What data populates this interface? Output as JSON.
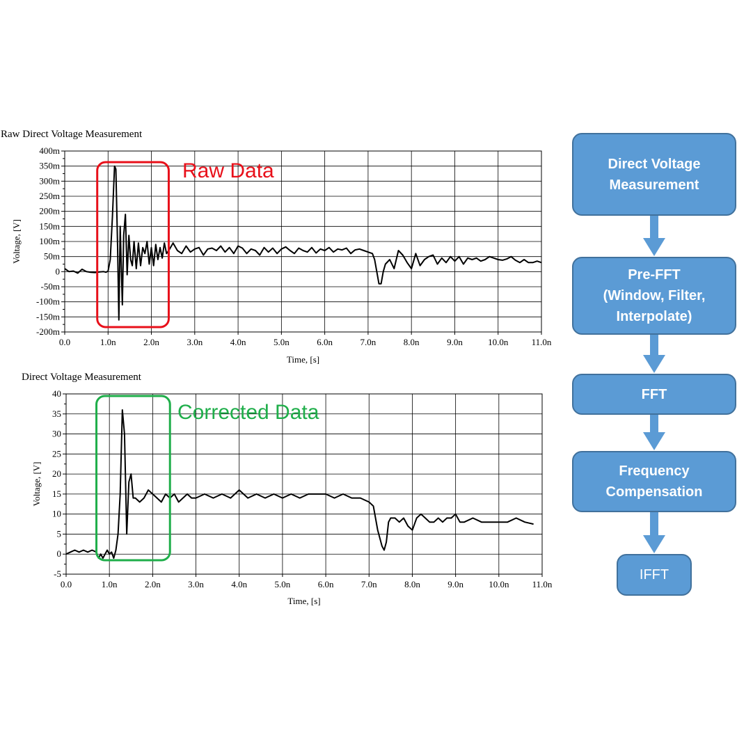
{
  "charts": {
    "raw": {
      "title": "Raw Direct Voltage Measurement",
      "annotation": "Raw Data"
    },
    "corrected": {
      "title": "Direct Voltage Measurement",
      "annotation": "Corrected Data"
    }
  },
  "chart_data": [
    {
      "type": "line",
      "title": "Raw Direct Voltage Measurement",
      "xlabel": "Time, [s]",
      "ylabel": "Voltage, [V]",
      "xlim": [
        0,
        11
      ],
      "ylim": [
        -200,
        400
      ],
      "x_tick_values": [
        0,
        1,
        2,
        3,
        4,
        5,
        6,
        7,
        8,
        9,
        10,
        11
      ],
      "x_tick_labels": [
        "0.0",
        "1.0n",
        "2.0n",
        "3.0n",
        "4.0n",
        "5.0n",
        "6.0n",
        "7.0n",
        "8.0n",
        "9.0n",
        "10.0n",
        "11.0n"
      ],
      "y_tick_values": [
        400,
        350,
        300,
        250,
        200,
        150,
        100,
        50,
        0,
        -50,
        -100,
        -150,
        -200
      ],
      "y_tick_labels": [
        "400m",
        "350m",
        "300m",
        "250m",
        "200m",
        "150m",
        "100m",
        "50m",
        "0",
        "-50m",
        "-100m",
        "-150m",
        "-200m"
      ],
      "x_unit_note": "ns",
      "grid": true,
      "annotation": "Raw Data",
      "annotation_color": "#e8101a",
      "highlight_range_x": [
        0.75,
        2.4
      ],
      "series": [
        {
          "color": "#000000",
          "x": [
            0,
            0.1,
            0.2,
            0.3,
            0.4,
            0.5,
            0.6,
            0.7,
            0.8,
            0.9,
            0.95,
            1.0,
            1.05,
            1.1,
            1.15,
            1.18,
            1.22,
            1.25,
            1.28,
            1.3,
            1.33,
            1.36,
            1.4,
            1.44,
            1.48,
            1.52,
            1.56,
            1.6,
            1.65,
            1.7,
            1.75,
            1.8,
            1.85,
            1.9,
            1.95,
            2.0,
            2.05,
            2.1,
            2.15,
            2.2,
            2.25,
            2.3,
            2.35,
            2.4,
            2.5,
            2.6,
            2.7,
            2.8,
            2.9,
            3.0,
            3.1,
            3.2,
            3.3,
            3.4,
            3.5,
            3.6,
            3.7,
            3.8,
            3.9,
            4.0,
            4.1,
            4.2,
            4.3,
            4.4,
            4.5,
            4.6,
            4.7,
            4.8,
            4.9,
            5.0,
            5.1,
            5.2,
            5.3,
            5.4,
            5.5,
            5.6,
            5.7,
            5.8,
            5.9,
            6.0,
            6.1,
            6.2,
            6.3,
            6.4,
            6.5,
            6.6,
            6.7,
            6.8,
            6.9,
            7.0,
            7.1,
            7.15,
            7.2,
            7.25,
            7.3,
            7.35,
            7.4,
            7.5,
            7.6,
            7.7,
            7.8,
            7.9,
            8.0,
            8.1,
            8.2,
            8.3,
            8.4,
            8.5,
            8.6,
            8.7,
            8.8,
            8.9,
            9.0,
            9.1,
            9.2,
            9.3,
            9.4,
            9.5,
            9.6,
            9.7,
            9.8,
            9.9,
            10.0,
            10.1,
            10.2,
            10.3,
            10.4,
            10.5,
            10.6,
            10.7,
            10.8,
            10.9,
            11.0
          ],
          "y": [
            10,
            0,
            2,
            -5,
            8,
            0,
            -2,
            -3,
            -1,
            0,
            -2,
            2,
            40,
            180,
            350,
            340,
            80,
            -160,
            150,
            40,
            -110,
            120,
            190,
            -10,
            120,
            40,
            20,
            100,
            10,
            95,
            20,
            80,
            60,
            100,
            25,
            80,
            20,
            90,
            40,
            80,
            45,
            95,
            60,
            70,
            95,
            70,
            60,
            85,
            65,
            75,
            80,
            55,
            75,
            78,
            70,
            85,
            65,
            80,
            60,
            85,
            78,
            60,
            75,
            70,
            55,
            80,
            65,
            78,
            60,
            75,
            82,
            70,
            60,
            78,
            70,
            65,
            80,
            62,
            75,
            70,
            80,
            65,
            75,
            72,
            78,
            60,
            72,
            75,
            70,
            65,
            60,
            40,
            0,
            -40,
            -40,
            0,
            25,
            40,
            10,
            70,
            55,
            30,
            10,
            60,
            20,
            40,
            50,
            55,
            25,
            45,
            30,
            50,
            35,
            50,
            25,
            45,
            40,
            45,
            35,
            40,
            50,
            45,
            40,
            38,
            42,
            50,
            38,
            30,
            40,
            30,
            30,
            35,
            30
          ],
          "note": "values in mV"
        }
      ]
    },
    {
      "type": "line",
      "title": "Direct Voltage Measurement",
      "xlabel": "Time, [s]",
      "ylabel": "Voltage, [V]",
      "xlim": [
        0,
        11
      ],
      "ylim": [
        -5,
        40
      ],
      "x_tick_values": [
        0,
        1,
        2,
        3,
        4,
        5,
        6,
        7,
        8,
        9,
        10,
        11
      ],
      "x_tick_labels": [
        "0.0",
        "1.0n",
        "2.0n",
        "3.0n",
        "4.0n",
        "5.0n",
        "6.0n",
        "7.0n",
        "8.0n",
        "9.0n",
        "10.0n",
        "11.0n"
      ],
      "y_tick_values": [
        40,
        35,
        30,
        25,
        20,
        15,
        10,
        5,
        0,
        -5
      ],
      "y_tick_labels": [
        "40",
        "35",
        "30",
        "25",
        "20",
        "15",
        "10",
        "5",
        "0",
        "-5"
      ],
      "grid": true,
      "annotation": "Corrected Data",
      "annotation_color": "#1fae4a",
      "highlight_range_x": [
        0.7,
        2.4
      ],
      "series": [
        {
          "color": "#000000",
          "x": [
            0,
            0.1,
            0.2,
            0.3,
            0.4,
            0.5,
            0.6,
            0.7,
            0.75,
            0.8,
            0.85,
            0.9,
            0.95,
            1.0,
            1.05,
            1.1,
            1.15,
            1.2,
            1.25,
            1.3,
            1.35,
            1.4,
            1.45,
            1.5,
            1.55,
            1.6,
            1.7,
            1.8,
            1.9,
            2.0,
            2.1,
            2.2,
            2.3,
            2.4,
            2.5,
            2.6,
            2.7,
            2.8,
            2.9,
            3.0,
            3.2,
            3.4,
            3.6,
            3.8,
            4.0,
            4.2,
            4.4,
            4.6,
            4.8,
            5.0,
            5.2,
            5.4,
            5.6,
            5.8,
            6.0,
            6.2,
            6.4,
            6.6,
            6.8,
            7.0,
            7.1,
            7.2,
            7.3,
            7.35,
            7.4,
            7.45,
            7.5,
            7.6,
            7.7,
            7.8,
            7.9,
            8.0,
            8.1,
            8.2,
            8.3,
            8.4,
            8.5,
            8.6,
            8.7,
            8.8,
            8.9,
            9.0,
            9.1,
            9.2,
            9.4,
            9.6,
            9.8,
            10.0,
            10.2,
            10.4,
            10.6,
            10.8
          ],
          "y": [
            0,
            0.5,
            1,
            0.5,
            1,
            0.5,
            1,
            0.5,
            -1,
            0,
            -1,
            0,
            1,
            0,
            0.5,
            -1,
            1,
            5,
            15,
            36,
            30,
            5,
            18,
            20,
            14,
            14,
            13,
            14,
            16,
            15,
            14,
            13,
            15,
            14,
            15,
            13,
            14,
            15,
            14,
            14,
            15,
            14,
            15,
            14,
            16,
            14,
            15,
            14,
            15,
            14,
            15,
            14,
            15,
            15,
            15,
            14,
            15,
            14,
            14,
            13,
            12,
            6,
            2,
            1,
            3,
            8,
            9,
            9,
            8,
            9,
            7,
            6,
            9,
            10,
            9,
            8,
            8,
            9,
            8,
            9,
            9,
            10,
            8,
            8,
            9,
            8,
            8,
            8,
            8,
            9,
            8,
            7.5
          ]
        }
      ]
    }
  ],
  "flowchart": {
    "steps": [
      {
        "label": "Direct Voltage\nMeasurement"
      },
      {
        "label": "Pre-FFT\n(Window, Filter,\nInterpolate)"
      },
      {
        "label": "FFT"
      },
      {
        "label": "Frequency\nCompensation"
      },
      {
        "label": "IFFT"
      }
    ],
    "box_color": "#5b9bd5",
    "border_color": "#41719c",
    "arrow_color": "#5b9bd5"
  }
}
